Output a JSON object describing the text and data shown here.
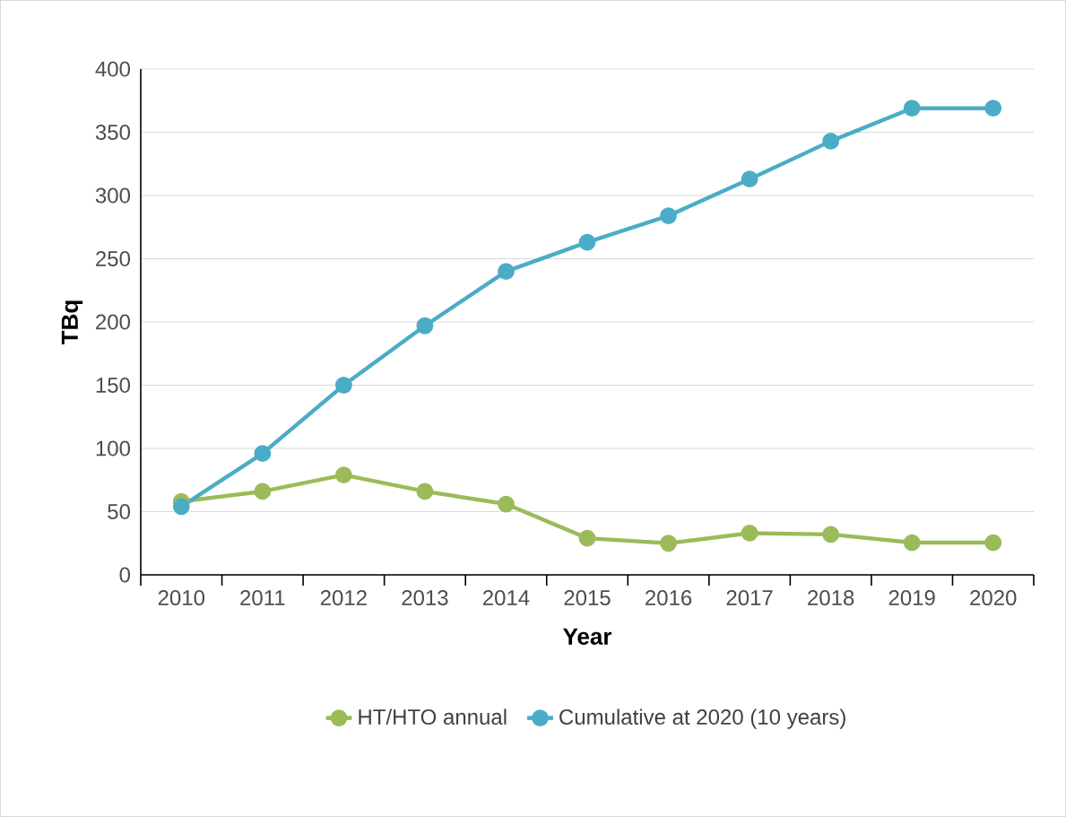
{
  "chart_data": {
    "type": "line",
    "xlabel": "Year",
    "ylabel": "TBq",
    "categories": [
      "2010",
      "2011",
      "2012",
      "2013",
      "2014",
      "2015",
      "2016",
      "2017",
      "2018",
      "2019",
      "2020"
    ],
    "series": [
      {
        "name": "HT/HTO annual",
        "color": "#9bbb59",
        "values": [
          58,
          66,
          79,
          66,
          56,
          29,
          25,
          33,
          32,
          25.5,
          25.5
        ]
      },
      {
        "name": "Cumulative at 2020 (10 years)",
        "color": "#4bacc6",
        "values": [
          54,
          96,
          150,
          197,
          240,
          263,
          284,
          313,
          343,
          369,
          369
        ]
      }
    ],
    "ylim": [
      0,
      400
    ],
    "yticks": [
      0,
      50,
      100,
      150,
      200,
      250,
      300,
      350,
      400
    ],
    "grid": "y",
    "legend": "bottom",
    "marker": "circle",
    "line_style": "solid"
  }
}
